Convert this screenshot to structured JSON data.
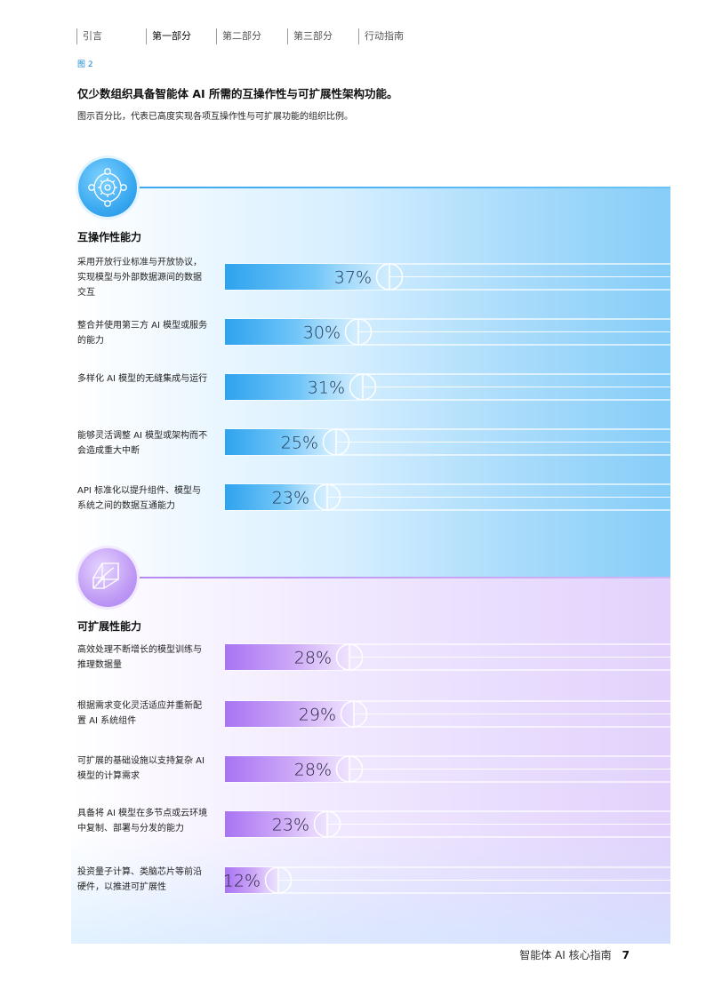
{
  "nav": [
    {
      "label": "引言",
      "active": false
    },
    {
      "label": "第一部分",
      "active": true
    },
    {
      "label": "第二部分",
      "active": false
    },
    {
      "label": "第三部分",
      "active": false
    },
    {
      "label": "行动指南",
      "active": false
    }
  ],
  "figure": {
    "label": "图 2",
    "title": "仅少数组织具备智能体 AI 所需的互操作性与可扩展性架构功能。",
    "subtitle": "图示百分比，代表已高度实现各项互操作性与可扩展功能的组织比例。"
  },
  "icons": {
    "interoperability": "gear-network-icon",
    "scalability": "cube-wireframe-icon"
  },
  "colors": {
    "interop_bar": "#3badf2",
    "scale_bar": "#b07bf5",
    "interop_line": "#3ba8ee",
    "scale_line": "#b58af0",
    "accent": "#1e88d6"
  },
  "chart_data": {
    "type": "bar",
    "orientation": "horizontal",
    "unit": "%",
    "xlim": [
      0,
      100
    ],
    "grid": false,
    "sections": [
      {
        "title": "互操作性能力",
        "categories": [
          "采用开放行业标准与开放协议，实现模型与外部数据源间的数据交互",
          "整合并使用第三方 AI 模型或服务的能力",
          "多样化 AI 模型的无缝集成与运行",
          "能够灵活调整 AI 模型或架构而不会造成重大中断",
          "API 标准化以提升组件、模型与系统之间的数据互通能力"
        ],
        "values": [
          37,
          30,
          31,
          25,
          23
        ],
        "labels": [
          "37%",
          "30%",
          "31%",
          "25%",
          "23%"
        ]
      },
      {
        "title": "可扩展性能力",
        "categories": [
          "高效处理不断增长的模型训练与推理数据量",
          "根据需求变化灵活适应并重新配置 AI 系统组件",
          "可扩展的基础设施以支持复杂 AI 模型的计算需求",
          "具备将 AI 模型在多节点或云环境中复制、部署与分发的能力",
          "投资量子计算、类脑芯片等前沿硬件，以推进可扩展性"
        ],
        "values": [
          28,
          29,
          28,
          23,
          12
        ],
        "labels": [
          "28%",
          "29%",
          "28%",
          "23%",
          "12%"
        ]
      }
    ]
  },
  "footer": {
    "title": "智能体 AI 核心指南",
    "page": "7"
  }
}
